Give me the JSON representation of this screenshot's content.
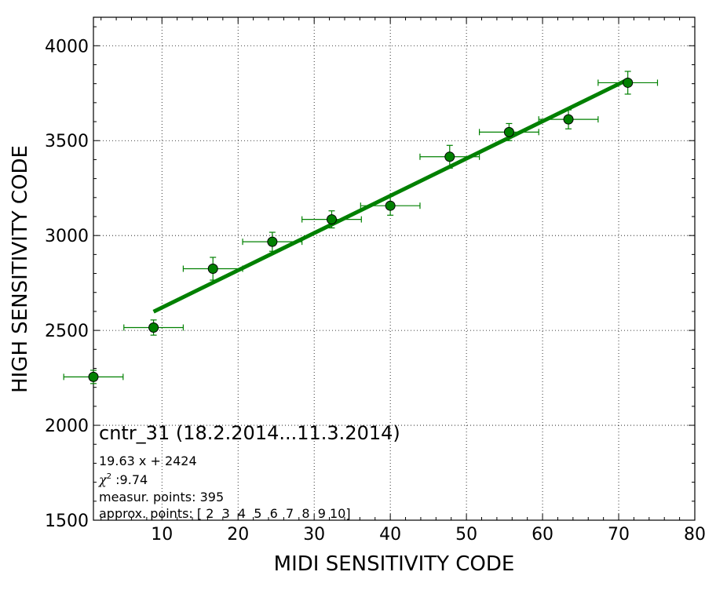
{
  "chart_data": {
    "type": "scatter",
    "xlabel": "MIDI SENSITIVITY CODE",
    "ylabel": "HIGH SENSITIVITY CODE",
    "xlim": [
      1,
      80
    ],
    "ylim": [
      1500,
      4150
    ],
    "grid": true,
    "x_ticks": [
      10,
      20,
      30,
      40,
      50,
      60,
      70,
      80
    ],
    "y_ticks": [
      1500,
      2000,
      2500,
      3000,
      3500,
      4000
    ],
    "series": [
      {
        "kind": "errorbar",
        "color": "#008000",
        "x": [
          1.0,
          8.9,
          16.7,
          24.5,
          32.3,
          40.0,
          47.8,
          55.6,
          63.4,
          71.2
        ],
        "y": [
          2255,
          2515,
          2825,
          2967,
          3085,
          3157,
          3415,
          3545,
          3612,
          3805
        ],
        "xerr": [
          3.9,
          3.9,
          3.9,
          3.9,
          3.9,
          3.9,
          3.9,
          3.9,
          3.9,
          3.9
        ],
        "yerr": [
          35,
          40,
          60,
          50,
          45,
          50,
          60,
          45,
          50,
          60
        ]
      },
      {
        "kind": "fit-line",
        "color": "#008000",
        "x": [
          8.9,
          71.2
        ],
        "y": [
          2598.7,
          3821.7
        ]
      }
    ],
    "annotations": {
      "title": "cntr_31 (18.2.2014...11.3.2014)",
      "equation": "19.63 x + 2424",
      "chi_label": "χ",
      "chi_sup": "2",
      "chi_value": " :9.74",
      "measur": "measur. points: 395",
      "approx": "approx. points: [ 2  3  4  5  6  7  8  9 10]"
    }
  }
}
